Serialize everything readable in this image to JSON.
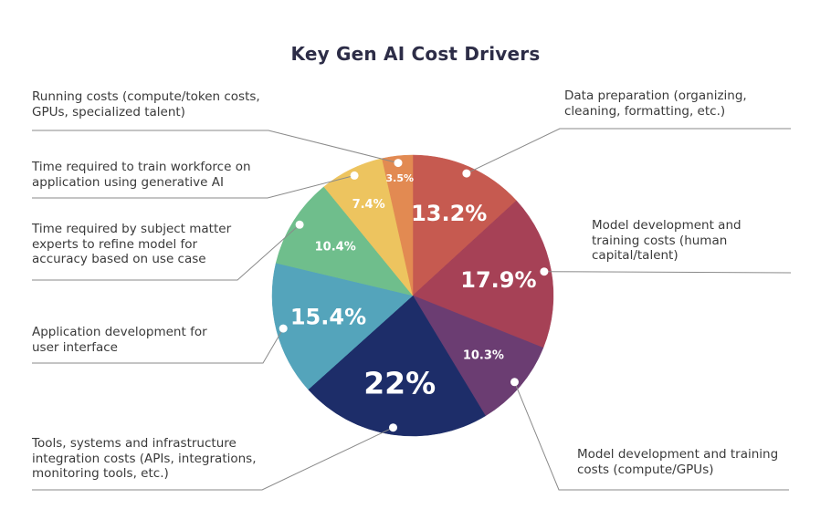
{
  "chart_data": {
    "type": "pie",
    "title": "Key Gen AI Cost Drivers",
    "start_angle_deg": -90,
    "direction": "clockwise",
    "legend_position": "callout-labels",
    "slices": [
      {
        "label": "Data preparation (organizing,\ncleaning, formatting, etc.)",
        "value": 13.2,
        "value_label": "13.2%",
        "color": "#C65A50"
      },
      {
        "label": "Model development and\ntraining costs (human\ncapital/talent)",
        "value": 17.9,
        "value_label": "17.9%",
        "color": "#A64156"
      },
      {
        "label": "Model development and training\ncosts (compute/GPUs)",
        "value": 10.3,
        "value_label": "10.3%",
        "color": "#6B3D72"
      },
      {
        "label": "Tools, systems and infrastructure\nintegration costs (APIs, integrations,\nmonitoring tools, etc.)",
        "value": 22,
        "value_label": "22%",
        "color": "#1D2D69"
      },
      {
        "label": "Application development for\nuser interface",
        "value": 15.4,
        "value_label": "15.4%",
        "color": "#54A4BB"
      },
      {
        "label": "Time required by subject matter\nexperts to refine model for\naccuracy based on use case",
        "value": 10.4,
        "value_label": "10.4%",
        "color": "#6FBE8C"
      },
      {
        "label": "Time required to train workforce on\napplication using generative AI",
        "value": 7.4,
        "value_label": "7.4%",
        "color": "#EDC45F"
      },
      {
        "label": "Running costs (compute/token costs,\nGPUs, specialized talent)",
        "value": 3.5,
        "value_label": "3.5%",
        "color": "#E28A52"
      }
    ],
    "colors": {
      "title_text": "#2d2d47",
      "label_text": "#3a3a3a",
      "leader_line": "#8a8a8a",
      "leader_dot": "#ffffff",
      "value_text": "#ffffff",
      "background": "#ffffff"
    }
  }
}
